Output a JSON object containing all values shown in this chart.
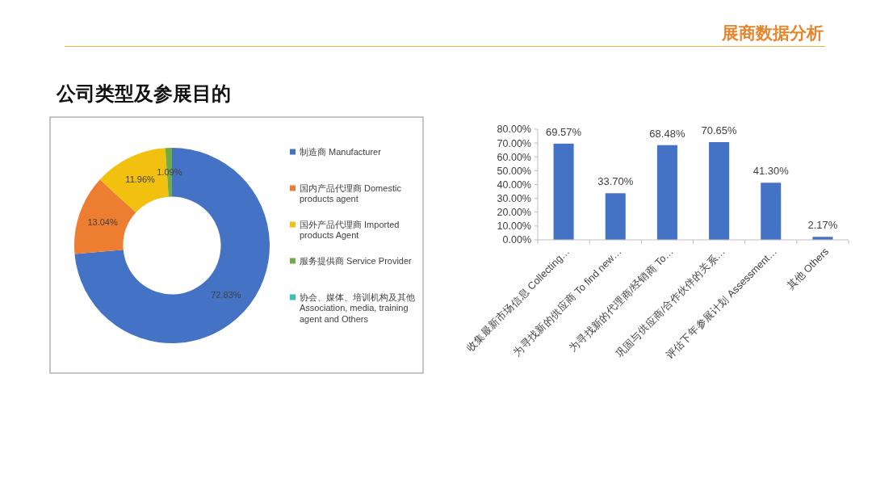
{
  "chart_data": [
    {
      "type": "donut",
      "title": "公司类型及参展目的",
      "annotations": [
        "展商数据分析"
      ],
      "categories": [
        "制造商 Manufacturer",
        "国内产品代理商 Domestic products agent",
        "国外产品代理商 Imported products Agent",
        "服务提供商 Service Provider",
        "协会、媒体、培训机构及其他 Association, media, training agent and Others"
      ],
      "values": [
        72.83,
        13.04,
        11.96,
        1.09,
        null
      ],
      "colors": [
        "#4472c4",
        "#ed7d31",
        "#f2c00f",
        "#70ad47",
        "#2ec4b6"
      ],
      "value_labels": [
        "72.83%",
        "13.04%",
        "11.96%",
        "1.09%",
        null
      ],
      "legend": "right"
    },
    {
      "type": "bar",
      "categories": [
        "收集最新市场信息 Collecting…",
        "为寻找新的供应商 To find new…",
        "为寻找新的代理商/经销商 To…",
        "巩固与供应商/合作伙伴的关系…",
        "评估下年参展计划 Assessment…",
        "其他 Others"
      ],
      "values": [
        69.57,
        33.7,
        68.48,
        70.65,
        41.3,
        2.17
      ],
      "color": "#4472c4",
      "ylim": [
        0,
        80
      ],
      "yticks": [
        {
          "value": 0,
          "label": "0.00%"
        },
        {
          "value": 10,
          "label": "10.00%"
        },
        {
          "value": 20,
          "label": "20.00%"
        },
        {
          "value": 30,
          "label": "30.00%"
        },
        {
          "value": 40,
          "label": "40.00%"
        },
        {
          "value": 50,
          "label": "50.00%"
        },
        {
          "value": 60,
          "label": "60.00%"
        },
        {
          "value": 70,
          "label": "70.00%"
        },
        {
          "value": 80,
          "label": "80.00%"
        }
      ],
      "value_labels": [
        "69.57%",
        "33.70%",
        "68.48%",
        "70.65%",
        "41.30%",
        "2.17%"
      ]
    }
  ]
}
